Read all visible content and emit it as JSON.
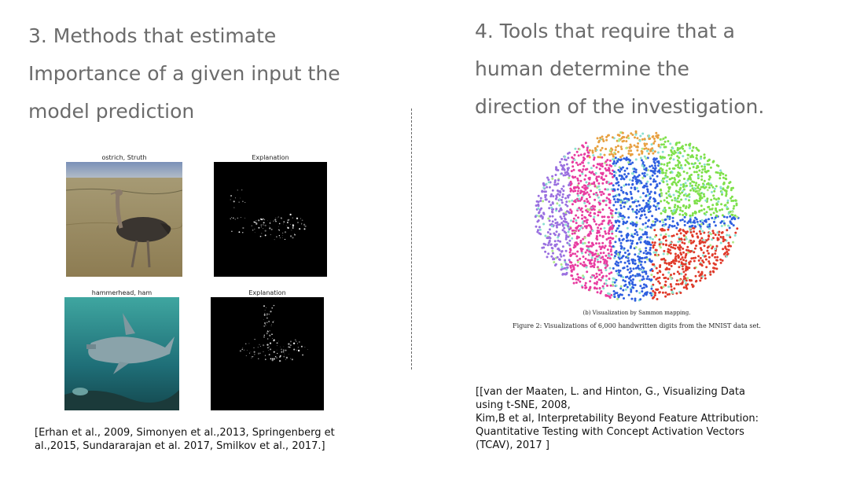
{
  "left": {
    "heading": "3. Methods that estimate\nImportance of a given input the\nmodel prediction",
    "figure": {
      "panels": [
        {
          "caption": "ostrich, Struth"
        },
        {
          "caption": "Explanation"
        },
        {
          "caption": "hammerhead, ham"
        },
        {
          "caption": "Explanation"
        }
      ]
    },
    "references": "[Erhan et al., 2009, Simonyen et al.,2013, Springenberg et\nal.,2015, Sundararajan et al. 2017, Smilkov et al., 2017.]"
  },
  "right": {
    "heading": "4. Tools that require that a\nhuman determine the\ndirection of the investigation.",
    "figure": {
      "subcaption": "(b) Visualization by Sammon mapping.",
      "caption": "Figure 2: Visualizations of 6,000 handwritten digits from the MNIST data set.",
      "cluster_colors": [
        "#e8a040",
        "#7ee04a",
        "#e83ca0",
        "#2f5fe0",
        "#e03a2a",
        "#8ae0d0",
        "#9a70e0",
        "#b0e88a"
      ]
    },
    "references": "[[van der Maaten, L. and Hinton, G.,  Visualizing Data\nusing t-SNE, 2008,\nKim,B et al, Interpretability Beyond Feature Attribution:\nQuantitative Testing with Concept Activation Vectors\n(TCAV), 2017 ]"
  }
}
